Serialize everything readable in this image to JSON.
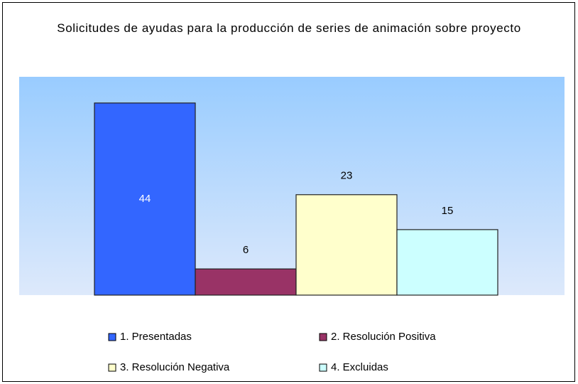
{
  "chart_data": {
    "type": "bar",
    "title": "Solicitudes de ayudas para la producción de series de animación sobre proyecto",
    "categories": [
      "1. Presentadas",
      "2. Resolución Positiva",
      "3. Resolución Negativa",
      "4. Excluidas"
    ],
    "values": [
      44,
      6,
      23,
      15
    ],
    "colors": [
      "#3366ff",
      "#993366",
      "#ffffcc",
      "#ccffff"
    ],
    "ylim": [
      0,
      50
    ],
    "legend": "bottom"
  }
}
